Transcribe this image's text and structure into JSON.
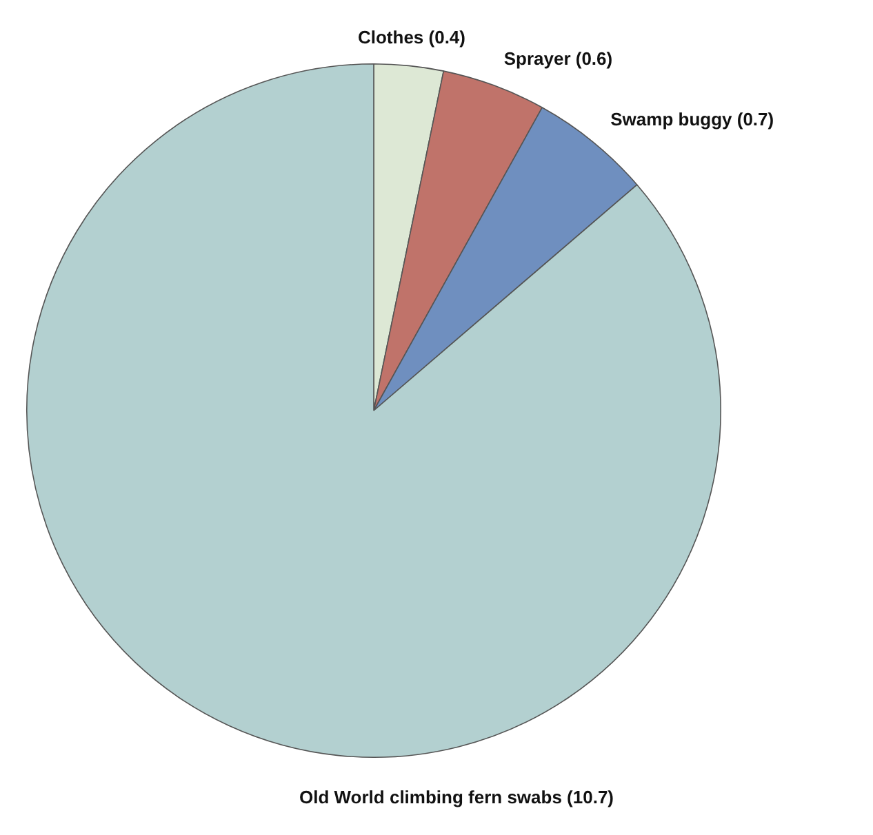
{
  "chart_data": {
    "type": "pie",
    "categories": [
      "Clothes",
      "Sprayer",
      "Swamp buggy",
      "Old World climbing fern swabs"
    ],
    "values": [
      0.4,
      0.6,
      0.7,
      10.7
    ],
    "value_labels": [
      "(0.4)",
      "(0.6)",
      "(0.7)",
      "(10.7)"
    ],
    "colors": [
      "#dde8d5",
      "#c0736a",
      "#6f8fbf",
      "#b3d0d0"
    ],
    "legend": false
  }
}
